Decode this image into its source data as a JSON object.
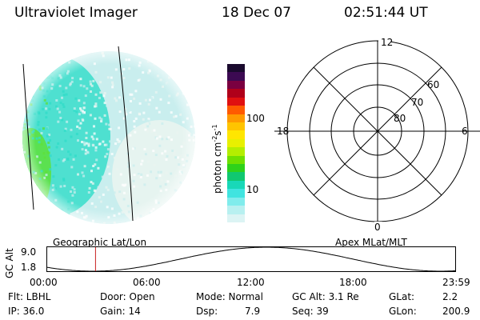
{
  "header": {
    "instrument": "Ultraviolet Imager",
    "date": "18 Dec 07",
    "time": "02:51:44 UT"
  },
  "colorbar": {
    "unit_label": "photon cm",
    "unit_exp1": "-2",
    "unit_mid": "s",
    "unit_exp2": "-1",
    "tick_100": "100",
    "tick_10": "10",
    "colors": [
      "#1a0a2e",
      "#3c0a52",
      "#7a0040",
      "#b0001a",
      "#e01010",
      "#ff5a00",
      "#ff9a00",
      "#ffc400",
      "#ffe600",
      "#e8f000",
      "#b4ee00",
      "#6fe000",
      "#2ed21a",
      "#10c870",
      "#18d8b8",
      "#40e4e0",
      "#80ecec",
      "#b8f0f0",
      "#dcf4f4"
    ]
  },
  "polar": {
    "mlt_12": "12",
    "mlt_18": "18",
    "mlt_6": "6",
    "mlt_0": "0",
    "lat_60": "60",
    "lat_70": "70",
    "lat_80": "80"
  },
  "orbit": {
    "left_label": "Geographic Lat/Lon",
    "right_label": "Apex MLat/MLT",
    "axis_label": "GC Alt",
    "y_top": "9.0",
    "y_bottom": "1.8",
    "x_ticks": [
      "00:00",
      "06:00",
      "12:00",
      "18:00",
      "23:59"
    ],
    "current_time_hours": 2.86
  },
  "status": {
    "flt": "Flt: LBHL",
    "ip": "IP: 36.0",
    "door": "Door: Open",
    "gain": "Gain: 14",
    "mode": "Mode: Normal",
    "dsp_label": "Dsp:",
    "dsp_value": "7.9",
    "gcalt": "GC Alt: 3.1 Re",
    "seq": "Seq: 39",
    "glat_label": "GLat:",
    "glat_value": "2.2",
    "glon_label": "GLon:",
    "glon_value": "200.9"
  },
  "colors": {
    "disk_base": "#c9eeee",
    "disk_cyan": "#30dcc8",
    "disk_green": "#5ee03a",
    "disk_pale": "#e9f4f0"
  }
}
